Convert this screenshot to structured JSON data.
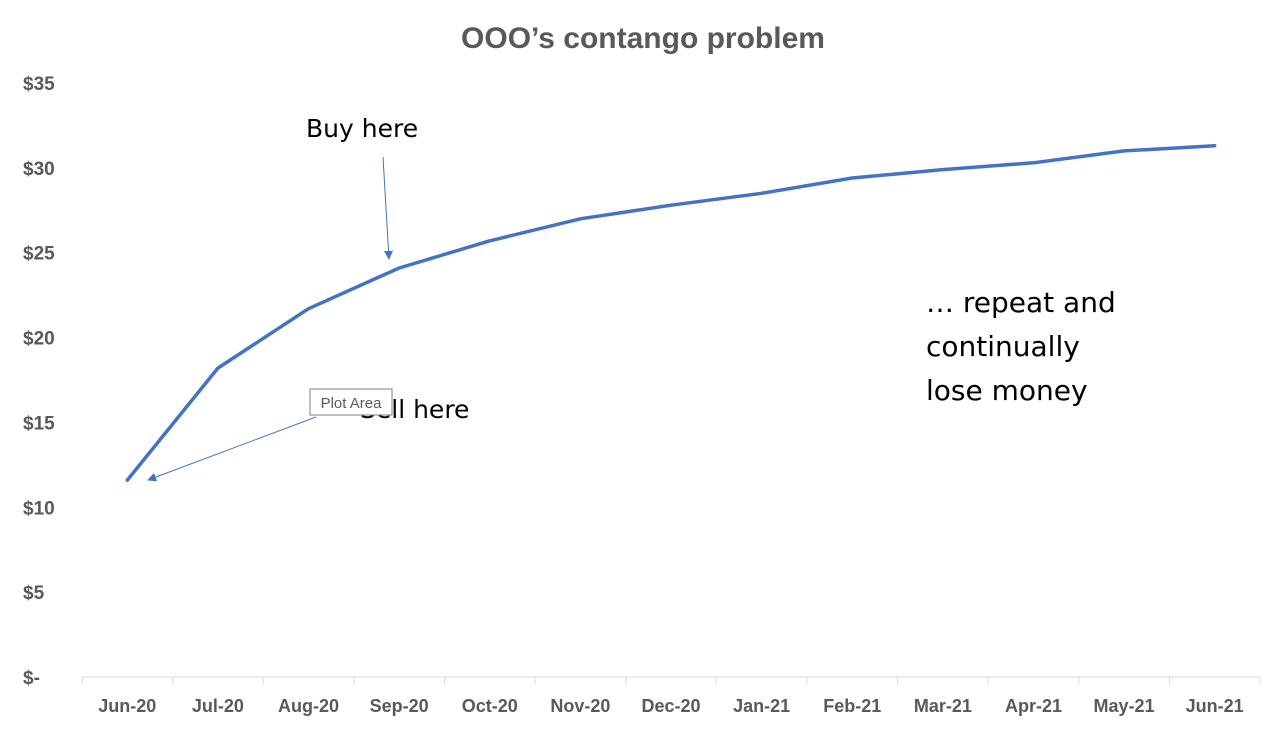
{
  "chart_data": {
    "type": "line",
    "title": "OOO’s contango problem",
    "xlabel": "",
    "ylabel": "",
    "categories": [
      "Jun-20",
      "Jul-20",
      "Aug-20",
      "Sep-20",
      "Oct-20",
      "Nov-20",
      "Dec-20",
      "Jan-21",
      "Feb-21",
      "Mar-21",
      "Apr-21",
      "May-21",
      "Jun-21"
    ],
    "y_tick_labels": [
      "$-",
      "$5",
      "$10",
      "$15",
      "$20",
      "$25",
      "$30",
      "$35"
    ],
    "y_tick_values": [
      0,
      5,
      10,
      15,
      20,
      25,
      30,
      35
    ],
    "ylim": [
      0,
      35
    ],
    "grid": false,
    "series": [
      {
        "name": "OOO",
        "color": "#4472C4",
        "values": [
          11.6,
          18.2,
          21.7,
          24.1,
          25.7,
          27.0,
          27.8,
          28.5,
          29.4,
          29.9,
          30.3,
          31.0,
          31.3
        ]
      }
    ],
    "annotations": {
      "buy_here": "Buy here",
      "sell_here": "Sell here",
      "repeat_line1": "… repeat and",
      "repeat_line2": "continually",
      "repeat_line3": "lose money"
    },
    "tooltip": "Plot Area"
  }
}
